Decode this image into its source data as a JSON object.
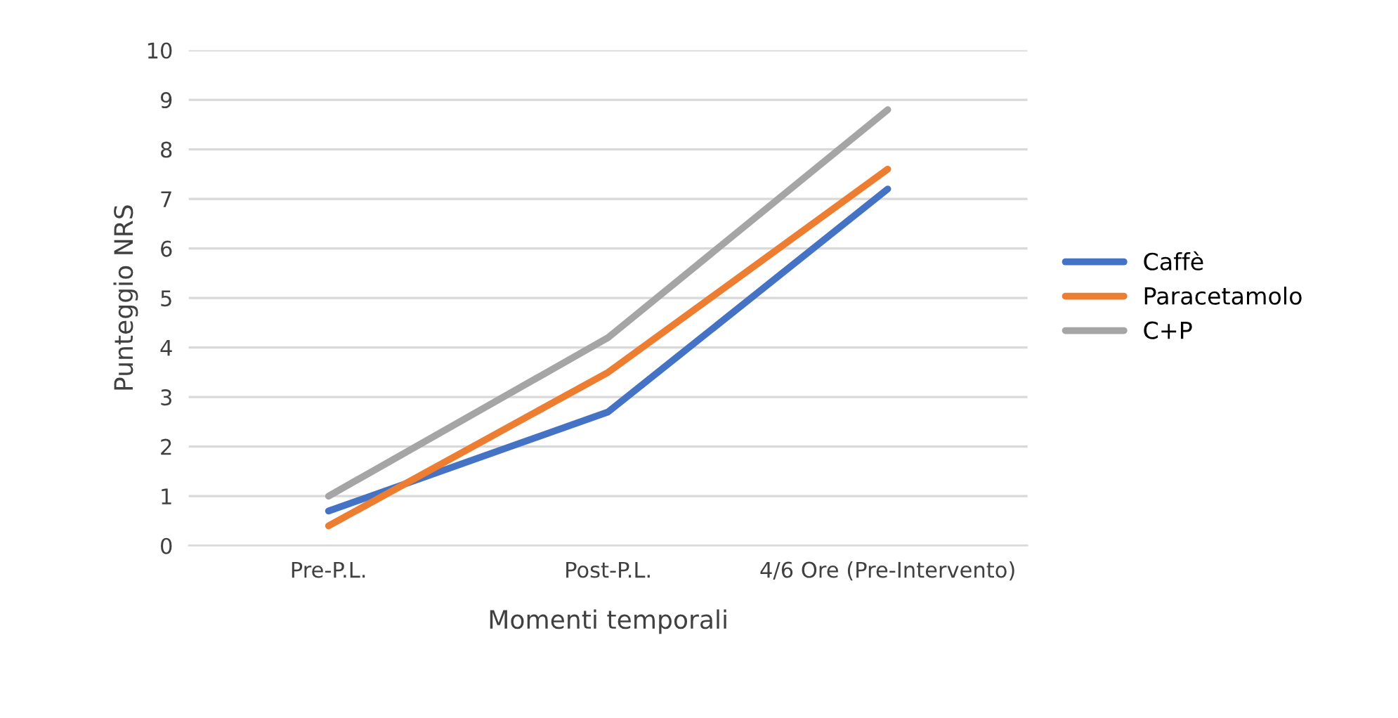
{
  "chart_data": {
    "type": "line",
    "xlabel": "Momenti temporali",
    "ylabel": "Punteggio NRS",
    "categories": [
      "Pre-P.L.",
      "Post-P.L.",
      "4/6 Ore (Pre-Intervento)"
    ],
    "series": [
      {
        "name": "Caffè",
        "color": "#4472c4",
        "values": [
          0.7,
          2.7,
          7.2
        ]
      },
      {
        "name": "Paracetamolo",
        "color": "#ed7d31",
        "values": [
          0.4,
          3.5,
          7.6
        ]
      },
      {
        "name": "C+P",
        "color": "#a5a5a5",
        "values": [
          1.0,
          4.2,
          8.8
        ]
      }
    ],
    "ylim": [
      0,
      10
    ],
    "yticks": [
      0,
      1,
      2,
      3,
      4,
      5,
      6,
      7,
      8,
      9,
      10
    ],
    "grid": "y",
    "legend": "right",
    "marker": "none",
    "line_style": "solid"
  }
}
